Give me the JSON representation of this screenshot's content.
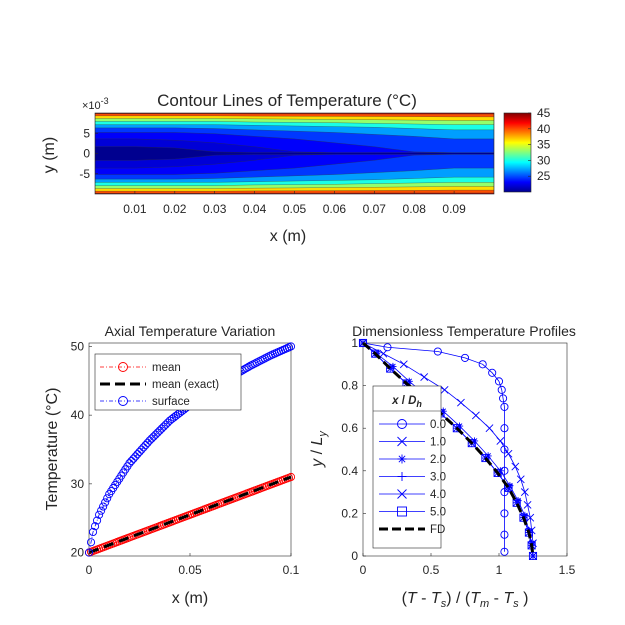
{
  "chart_data": [
    {
      "type": "heatmap",
      "title": "Contour Lines of Temperature (°C)",
      "xlabel": "x (m)",
      "ylabel": "y (m)",
      "y_exponent": "×10",
      "y_exponent_power": "-3",
      "xlim": [
        0,
        0.1
      ],
      "ylim": [
        -10,
        10
      ],
      "xticks": [
        "0.01",
        "0.02",
        "0.03",
        "0.04",
        "0.05",
        "0.06",
        "0.07",
        "0.08",
        "0.09"
      ],
      "yticks": [
        "5",
        "0",
        "-5"
      ],
      "colorbar": {
        "range": [
          20,
          45
        ],
        "ticks": [
          "45",
          "40",
          "35",
          "30",
          "25"
        ]
      },
      "colormap": [
        "#00008f",
        "#0000ff",
        "#0080ff",
        "#00ffff",
        "#80ff80",
        "#ffff00",
        "#ff8000",
        "#ff0000",
        "#800000"
      ],
      "contours": [
        {
          "T": 22.0,
          "d": [
            2.6,
            2.6,
            2.7,
            3.0,
            3.5,
            4.2,
            5.2,
            6.6,
            8.5,
            10.2
          ]
        },
        {
          "T": 23.0,
          "d": [
            2.0,
            2.0,
            2.1,
            2.3,
            2.6,
            3.0,
            3.5,
            4.1,
            4.8,
            5.5
          ]
        },
        {
          "T": 24.5,
          "d": [
            1.5,
            1.5,
            1.5,
            1.6,
            1.8,
            2.0,
            2.3,
            2.6,
            3.0,
            3.3
          ]
        },
        {
          "T": 27.0,
          "d": [
            1.15,
            1.15,
            1.15,
            1.2,
            1.3,
            1.4,
            1.5,
            1.65,
            1.8,
            2.0
          ]
        },
        {
          "T": 30.0,
          "d": [
            0.9,
            0.9,
            0.9,
            0.9,
            0.95,
            1.0,
            1.05,
            1.1,
            1.2,
            1.3
          ]
        },
        {
          "T": 33.0,
          "d": [
            0.65,
            0.65,
            0.65,
            0.65,
            0.7,
            0.72,
            0.75,
            0.8,
            0.85,
            0.9
          ]
        },
        {
          "T": 36.5,
          "d": [
            0.42,
            0.42,
            0.42,
            0.42,
            0.45,
            0.47,
            0.5,
            0.52,
            0.55,
            0.58
          ]
        },
        {
          "T": 40.0,
          "d": [
            0.22,
            0.22,
            0.22,
            0.22,
            0.24,
            0.25,
            0.26,
            0.27,
            0.28,
            0.3
          ]
        },
        {
          "T": 43.5,
          "d": [
            0.06,
            0.06,
            0.06,
            0.06,
            0.07,
            0.07,
            0.07,
            0.08,
            0.08,
            0.08
          ]
        }
      ],
      "contour_x": [
        0,
        0.01,
        0.02,
        0.03,
        0.04,
        0.05,
        0.06,
        0.07,
        0.08,
        0.09
      ]
    },
    {
      "type": "line",
      "title": "Axial Temperature Variation",
      "xlabel": "x (m)",
      "ylabel": "Temperature (°C)",
      "xlim": [
        0,
        0.1
      ],
      "ylim": [
        19.5,
        50.5
      ],
      "xticks": [
        "0",
        "0.05",
        "0.1"
      ],
      "yticks": [
        "50",
        "40",
        "30",
        "20"
      ],
      "legend_position": "top-left",
      "series": [
        {
          "name": "mean",
          "color": "#ff0000",
          "marker": "circle",
          "x_start": 0,
          "x_end": 0.1,
          "y_start": 20,
          "y_end": 31,
          "n": 101
        },
        {
          "name": "mean (exact)",
          "color": "#000000",
          "style": "dashed",
          "x_start": 0,
          "x_end": 0.1,
          "y_start": 20,
          "y_end": 31
        },
        {
          "name": "surface",
          "color": "#0000ff",
          "marker": "circle",
          "n": 101,
          "x": [
            0,
            0.001,
            0.002,
            0.005,
            0.01,
            0.02,
            0.03,
            0.04,
            0.05,
            0.06,
            0.07,
            0.08,
            0.09,
            0.1
          ],
          "y": [
            20,
            21.5,
            23.0,
            25.5,
            28.5,
            33,
            36.3,
            39.2,
            41.5,
            43.5,
            45.5,
            47.2,
            48.7,
            50
          ]
        }
      ]
    },
    {
      "type": "line",
      "title": "Dimensionless Temperature Profiles",
      "xlabel": "(T - Tₛ) / (Tₘ - Tₛ)",
      "ylabel": "y / L_y",
      "xlim": [
        0,
        1.5
      ],
      "ylim": [
        0,
        1
      ],
      "xticks": [
        "0",
        "0.5",
        "1",
        "1.5"
      ],
      "yticks": [
        "1",
        "0.8",
        "0.6",
        "0.4",
        "0.2",
        "0"
      ],
      "legend_title": "x / D_h",
      "legend_position": "left-middle",
      "series": [
        {
          "name": "0.0",
          "marker": "circle",
          "color": "#0000ff",
          "points": [
            [
              0,
              1
            ],
            [
              0.18,
              0.98
            ],
            [
              0.55,
              0.96
            ],
            [
              0.75,
              0.93
            ],
            [
              0.88,
              0.9
            ],
            [
              0.95,
              0.86
            ],
            [
              1.0,
              0.82
            ],
            [
              1.02,
              0.78
            ],
            [
              1.03,
              0.74
            ],
            [
              1.04,
              0.7
            ],
            [
              1.04,
              0.6
            ],
            [
              1.04,
              0.5
            ],
            [
              1.04,
              0.4
            ],
            [
              1.04,
              0.3
            ],
            [
              1.04,
              0.2
            ],
            [
              1.04,
              0.1
            ],
            [
              1.04,
              0.02
            ]
          ]
        },
        {
          "name": "1.0",
          "marker": "x",
          "color": "#0000ff",
          "points": [
            [
              0,
              1
            ],
            [
              0.15,
              0.95
            ],
            [
              0.3,
              0.9
            ],
            [
              0.45,
              0.84
            ],
            [
              0.6,
              0.78
            ],
            [
              0.72,
              0.72
            ],
            [
              0.83,
              0.66
            ],
            [
              0.93,
              0.6
            ],
            [
              1.01,
              0.54
            ],
            [
              1.07,
              0.48
            ],
            [
              1.12,
              0.42
            ],
            [
              1.16,
              0.36
            ],
            [
              1.19,
              0.3
            ],
            [
              1.21,
              0.24
            ],
            [
              1.23,
              0.18
            ],
            [
              1.24,
              0.12
            ],
            [
              1.25,
              0.06
            ],
            [
              1.25,
              0
            ]
          ]
        },
        {
          "name": "2.0",
          "marker": "asterisk",
          "color": "#0000ff",
          "points": [
            [
              0,
              1
            ],
            [
              0.1,
              0.95
            ],
            [
              0.22,
              0.89
            ],
            [
              0.34,
              0.82
            ],
            [
              0.47,
              0.75
            ],
            [
              0.59,
              0.68
            ],
            [
              0.71,
              0.61
            ],
            [
              0.82,
              0.54
            ],
            [
              0.92,
              0.47
            ],
            [
              1.01,
              0.4
            ],
            [
              1.08,
              0.33
            ],
            [
              1.14,
              0.26
            ],
            [
              1.19,
              0.19
            ],
            [
              1.22,
              0.12
            ],
            [
              1.24,
              0.06
            ],
            [
              1.25,
              0
            ]
          ]
        },
        {
          "name": "3.0",
          "marker": "plus",
          "color": "#0000ff",
          "points": [
            [
              0,
              1
            ],
            [
              0.09,
              0.95
            ],
            [
              0.2,
              0.88
            ],
            [
              0.32,
              0.81
            ],
            [
              0.45,
              0.74
            ],
            [
              0.57,
              0.67
            ],
            [
              0.69,
              0.6
            ],
            [
              0.8,
              0.53
            ],
            [
              0.9,
              0.46
            ],
            [
              0.99,
              0.39
            ],
            [
              1.07,
              0.32
            ],
            [
              1.13,
              0.25
            ],
            [
              1.18,
              0.18
            ],
            [
              1.22,
              0.11
            ],
            [
              1.24,
              0.05
            ],
            [
              1.25,
              0
            ]
          ]
        },
        {
          "name": "4.0",
          "marker": "x",
          "color": "#0000ff",
          "points": [
            [
              0,
              1
            ],
            [
              0.09,
              0.95
            ],
            [
              0.2,
              0.88
            ],
            [
              0.32,
              0.81
            ],
            [
              0.45,
              0.74
            ],
            [
              0.57,
              0.67
            ],
            [
              0.69,
              0.6
            ],
            [
              0.8,
              0.53
            ],
            [
              0.9,
              0.46
            ],
            [
              0.99,
              0.39
            ],
            [
              1.07,
              0.32
            ],
            [
              1.13,
              0.25
            ],
            [
              1.18,
              0.18
            ],
            [
              1.22,
              0.11
            ],
            [
              1.24,
              0.05
            ],
            [
              1.25,
              0
            ]
          ]
        },
        {
          "name": "5.0",
          "marker": "square",
          "color": "#0000ff",
          "points": [
            [
              0,
              1
            ],
            [
              0.09,
              0.95
            ],
            [
              0.2,
              0.88
            ],
            [
              0.32,
              0.81
            ],
            [
              0.45,
              0.74
            ],
            [
              0.57,
              0.67
            ],
            [
              0.69,
              0.6
            ],
            [
              0.8,
              0.53
            ],
            [
              0.9,
              0.46
            ],
            [
              0.99,
              0.39
            ],
            [
              1.07,
              0.32
            ],
            [
              1.13,
              0.25
            ],
            [
              1.18,
              0.18
            ],
            [
              1.22,
              0.11
            ],
            [
              1.24,
              0.05
            ],
            [
              1.25,
              0
            ]
          ]
        },
        {
          "name": "FD",
          "style": "dashed",
          "color": "#000000",
          "points": [
            [
              0,
              1
            ],
            [
              0.09,
              0.95
            ],
            [
              0.2,
              0.88
            ],
            [
              0.32,
              0.81
            ],
            [
              0.45,
              0.74
            ],
            [
              0.57,
              0.67
            ],
            [
              0.69,
              0.6
            ],
            [
              0.8,
              0.53
            ],
            [
              0.9,
              0.46
            ],
            [
              0.99,
              0.39
            ],
            [
              1.07,
              0.32
            ],
            [
              1.13,
              0.25
            ],
            [
              1.18,
              0.18
            ],
            [
              1.22,
              0.11
            ],
            [
              1.24,
              0.05
            ],
            [
              1.25,
              0
            ]
          ]
        }
      ]
    }
  ]
}
